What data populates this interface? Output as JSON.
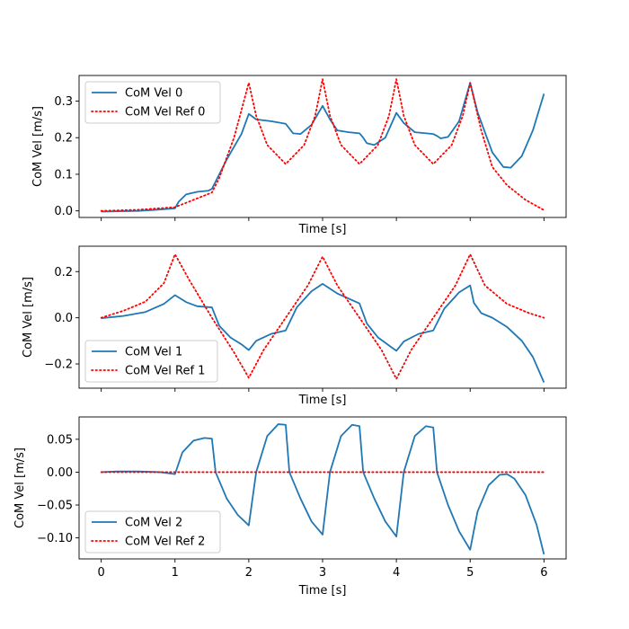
{
  "chart_data": [
    {
      "type": "line",
      "xlabel": "Time [s]",
      "ylabel": "CoM Vel [m/s]",
      "xlim": [
        -0.3,
        6.3
      ],
      "ylim": [
        -0.018,
        0.37
      ],
      "xticks": [],
      "yticks": [
        "0.0",
        "0.1",
        "0.2",
        "0.3"
      ],
      "ytick_values": [
        0,
        0.1,
        0.2,
        0.3
      ],
      "legend_loc": "upper left",
      "series": [
        {
          "name": "CoM Vel 0",
          "color": "#1f77b4",
          "style": "solid",
          "x": [
            0,
            0.25,
            0.5,
            0.75,
            1.0,
            1.05,
            1.15,
            1.3,
            1.45,
            1.5,
            1.7,
            1.9,
            2.0,
            2.1,
            2.3,
            2.5,
            2.55,
            2.6,
            2.7,
            2.85,
            3.0,
            3.1,
            3.2,
            3.35,
            3.5,
            3.55,
            3.6,
            3.7,
            3.85,
            4.0,
            4.1,
            4.25,
            4.5,
            4.55,
            4.6,
            4.7,
            4.85,
            5.0,
            5.1,
            5.3,
            5.45,
            5.55,
            5.7,
            5.85,
            6.0
          ],
          "y": [
            -0.002,
            -0.001,
            0.0,
            0.003,
            0.007,
            0.025,
            0.045,
            0.052,
            0.055,
            0.06,
            0.14,
            0.21,
            0.265,
            0.25,
            0.245,
            0.238,
            0.225,
            0.212,
            0.21,
            0.235,
            0.287,
            0.25,
            0.22,
            0.215,
            0.212,
            0.2,
            0.185,
            0.18,
            0.2,
            0.268,
            0.24,
            0.215,
            0.21,
            0.205,
            0.198,
            0.202,
            0.245,
            0.35,
            0.27,
            0.16,
            0.12,
            0.118,
            0.15,
            0.22,
            0.32
          ]
        },
        {
          "name": "CoM Vel Ref 0",
          "color": "#ff0000",
          "style": "dotted",
          "x": [
            0,
            0.5,
            1.0,
            1.5,
            1.6,
            1.8,
            2.0,
            2.1,
            2.25,
            2.5,
            2.75,
            2.9,
            3.0,
            3.1,
            3.25,
            3.5,
            3.75,
            3.9,
            4.0,
            4.1,
            4.25,
            4.5,
            4.75,
            4.9,
            5.0,
            5.15,
            5.3,
            5.5,
            5.75,
            6.0
          ],
          "y": [
            0.0,
            0.003,
            0.01,
            0.05,
            0.09,
            0.2,
            0.35,
            0.26,
            0.18,
            0.128,
            0.18,
            0.26,
            0.36,
            0.26,
            0.18,
            0.128,
            0.18,
            0.26,
            0.36,
            0.26,
            0.18,
            0.128,
            0.18,
            0.26,
            0.35,
            0.22,
            0.12,
            0.07,
            0.03,
            0.002
          ]
        }
      ]
    },
    {
      "type": "line",
      "xlabel": "Time [s]",
      "ylabel": "CoM Vel [m/s]",
      "xlim": [
        -0.3,
        6.3
      ],
      "ylim": [
        -0.305,
        0.31
      ],
      "xticks": [],
      "yticks": [
        "0.2",
        "0.0",
        "−0.2"
      ],
      "ytick_values": [
        0.2,
        0.0,
        -0.2
      ],
      "legend_loc": "lower left",
      "series": [
        {
          "name": "CoM Vel 1",
          "color": "#1f77b4",
          "style": "solid",
          "x": [
            0,
            0.3,
            0.6,
            0.85,
            1.0,
            1.15,
            1.3,
            1.5,
            1.6,
            1.75,
            1.9,
            2.0,
            2.1,
            2.3,
            2.5,
            2.65,
            2.85,
            3.0,
            3.2,
            3.5,
            3.6,
            3.75,
            3.9,
            4.0,
            4.1,
            4.3,
            4.5,
            4.65,
            4.85,
            5.0,
            5.05,
            5.15,
            5.3,
            5.5,
            5.7,
            5.85,
            6.0
          ],
          "y": [
            -0.002,
            0.008,
            0.025,
            0.06,
            0.098,
            0.068,
            0.05,
            0.045,
            -0.035,
            -0.085,
            -0.115,
            -0.14,
            -0.1,
            -0.07,
            -0.055,
            0.045,
            0.115,
            0.147,
            0.105,
            0.062,
            -0.025,
            -0.085,
            -0.12,
            -0.143,
            -0.103,
            -0.07,
            -0.055,
            0.04,
            0.11,
            0.14,
            0.065,
            0.02,
            0.0,
            -0.04,
            -0.1,
            -0.17,
            -0.28
          ]
        },
        {
          "name": "CoM Vel Ref 1",
          "color": "#ff0000",
          "style": "dotted",
          "x": [
            0,
            0.3,
            0.6,
            0.85,
            1.0,
            1.2,
            1.5,
            1.8,
            2.0,
            2.2,
            2.5,
            2.8,
            3.0,
            3.2,
            3.5,
            3.8,
            4.0,
            4.2,
            4.5,
            4.8,
            5.0,
            5.2,
            5.5,
            5.8,
            6.0
          ],
          "y": [
            0.0,
            0.03,
            0.07,
            0.15,
            0.275,
            0.16,
            0.0,
            -0.15,
            -0.26,
            -0.14,
            0.0,
            0.14,
            0.265,
            0.14,
            0.0,
            -0.14,
            -0.265,
            -0.14,
            0.0,
            0.14,
            0.275,
            0.14,
            0.06,
            0.02,
            0.0
          ]
        }
      ]
    },
    {
      "type": "line",
      "xlabel": "Time [s]",
      "ylabel": "CoM Vel [m/s]",
      "xlim": [
        -0.3,
        6.3
      ],
      "ylim": [
        -0.132,
        0.084
      ],
      "xticks": [
        "0",
        "1",
        "2",
        "3",
        "4",
        "5",
        "6"
      ],
      "xtick_values": [
        0,
        1,
        2,
        3,
        4,
        5,
        6
      ],
      "yticks": [
        "0.05",
        "0.00",
        "−0.05",
        "−0.10"
      ],
      "ytick_values": [
        0.05,
        0.0,
        -0.05,
        -0.1
      ],
      "legend_loc": "lower left",
      "series": [
        {
          "name": "CoM Vel 2",
          "color": "#1f77b4",
          "style": "solid",
          "x": [
            0,
            0.2,
            0.5,
            0.8,
            1.0,
            1.1,
            1.25,
            1.4,
            1.5,
            1.55,
            1.7,
            1.85,
            2.0,
            2.1,
            2.25,
            2.4,
            2.5,
            2.55,
            2.7,
            2.85,
            3.0,
            3.1,
            3.25,
            3.4,
            3.5,
            3.55,
            3.7,
            3.85,
            4.0,
            4.1,
            4.25,
            4.4,
            4.5,
            4.55,
            4.7,
            4.85,
            5.0,
            5.1,
            5.25,
            5.4,
            5.5,
            5.6,
            5.75,
            5.9,
            6.0
          ],
          "y": [
            0.0,
            0.001,
            0.001,
            0.0,
            -0.003,
            0.03,
            0.048,
            0.052,
            0.051,
            0.0,
            -0.04,
            -0.065,
            -0.081,
            0.0,
            0.055,
            0.073,
            0.072,
            0.0,
            -0.04,
            -0.075,
            -0.095,
            0.0,
            0.055,
            0.072,
            0.07,
            0.0,
            -0.04,
            -0.075,
            -0.098,
            0.0,
            0.055,
            0.07,
            0.068,
            0.0,
            -0.05,
            -0.09,
            -0.118,
            -0.06,
            -0.02,
            -0.004,
            -0.003,
            -0.01,
            -0.035,
            -0.08,
            -0.125
          ]
        },
        {
          "name": "CoM Vel Ref 2",
          "color": "#ff0000",
          "style": "dotted",
          "x": [
            0,
            6
          ],
          "y": [
            0,
            0
          ]
        }
      ]
    }
  ]
}
